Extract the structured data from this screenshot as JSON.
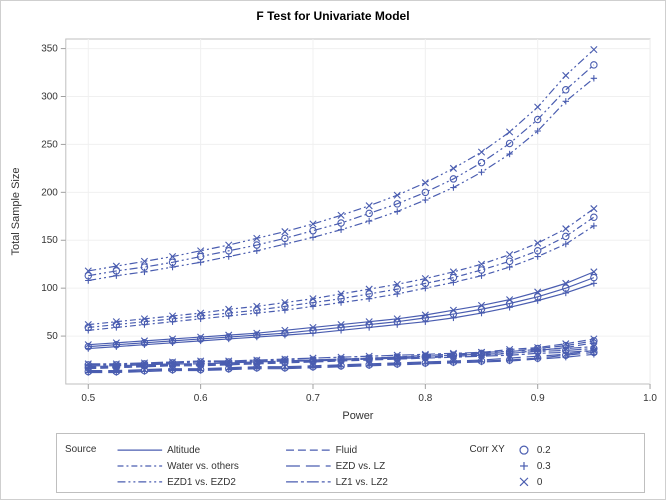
{
  "chart": {
    "title": "F Test for Univariate Model",
    "title_fontsize": 12,
    "xlabel": "Power",
    "ylabel": "Total Sample Size",
    "label_fontsize": 11,
    "tick_fontsize": 10,
    "xlim": [
      0.48,
      1.0
    ],
    "ylim": [
      0,
      360
    ],
    "xticks": [
      0.5,
      0.6,
      0.7,
      0.8,
      0.9,
      1.0
    ],
    "yticks": [
      50,
      100,
      150,
      200,
      250,
      300,
      350
    ],
    "background_color": "#ffffff",
    "grid_color": "#f0f0f0",
    "axis_color": "#a0a0a0",
    "series_color": "#4a5db0",
    "marker_size": 3.2,
    "x": [
      0.5,
      0.525,
      0.55,
      0.575,
      0.6,
      0.625,
      0.65,
      0.675,
      0.7,
      0.725,
      0.75,
      0.775,
      0.8,
      0.825,
      0.85,
      0.875,
      0.9,
      0.925,
      0.95
    ],
    "sources": [
      {
        "key": "Altitude",
        "label": "Altitude",
        "dash": []
      },
      {
        "key": "Fluid",
        "label": "Fluid",
        "dash": [
          8,
          4
        ]
      },
      {
        "key": "WaterVsOthers",
        "label": "Water vs. others",
        "dash": [
          6,
          3,
          2,
          3
        ]
      },
      {
        "key": "EZDvsLZ",
        "label": "EZD vs. LZ",
        "dash": [
          14,
          6
        ]
      },
      {
        "key": "EZD1vsEZD2",
        "label": "EZD1 vs. EZD2",
        "dash": [
          8,
          3,
          2,
          3,
          2,
          3
        ]
      },
      {
        "key": "LZ1vsLZ2",
        "label": "LZ1 vs. LZ2",
        "dash": [
          12,
          3,
          3,
          3
        ]
      }
    ],
    "corrs": [
      {
        "key": "0.2",
        "label": "0.2",
        "marker": "circle"
      },
      {
        "key": "0.3",
        "label": "0.3",
        "marker": "plus"
      },
      {
        "key": "0",
        "label": "0",
        "marker": "x"
      }
    ],
    "series": {
      "Altitude": {
        "0": [
          41,
          43,
          45,
          47,
          49,
          51,
          53,
          56,
          59,
          62,
          65,
          68,
          72,
          77,
          82,
          88,
          96,
          105,
          117
        ],
        "0.2": [
          39,
          41,
          43,
          45,
          47,
          49,
          51,
          53,
          56,
          59,
          62,
          65,
          69,
          73,
          78,
          84,
          91,
          100,
          111
        ],
        "0.3": [
          37,
          39,
          41,
          43,
          45,
          47,
          49,
          51,
          53,
          56,
          59,
          62,
          65,
          69,
          74,
          80,
          87,
          95,
          105
        ]
      },
      "Fluid": {
        "0": [
          18,
          19,
          20,
          21,
          21,
          22,
          23,
          24,
          25,
          26,
          27,
          28,
          30,
          31,
          33,
          36,
          38,
          42,
          47
        ],
        "0.2": [
          17,
          18,
          19,
          20,
          20,
          21,
          22,
          23,
          24,
          25,
          26,
          27,
          28,
          30,
          32,
          34,
          37,
          40,
          45
        ],
        "0.3": [
          16,
          17,
          18,
          19,
          19,
          20,
          21,
          22,
          23,
          24,
          25,
          26,
          27,
          29,
          30,
          32,
          35,
          38,
          43
        ]
      },
      "WaterVsOthers": {
        "0": [
          62,
          65,
          68,
          71,
          74,
          78,
          81,
          85,
          89,
          94,
          99,
          104,
          110,
          117,
          125,
          135,
          147,
          162,
          183
        ],
        "0.2": [
          59,
          62,
          65,
          68,
          71,
          74,
          77,
          81,
          85,
          89,
          94,
          99,
          105,
          111,
          119,
          128,
          139,
          154,
          174
        ],
        "0.3": [
          56,
          59,
          62,
          65,
          68,
          71,
          74,
          77,
          81,
          85,
          89,
          94,
          100,
          106,
          113,
          122,
          133,
          146,
          165
        ]
      },
      "EZDvsLZ": {
        "0": [
          14,
          14,
          15,
          16,
          16,
          17,
          18,
          18,
          19,
          20,
          21,
          22,
          23,
          24,
          25,
          27,
          29,
          31,
          35
        ],
        "0.2": [
          13,
          13,
          14,
          15,
          15,
          16,
          17,
          17,
          18,
          19,
          20,
          21,
          22,
          23,
          24,
          25,
          27,
          30,
          33
        ],
        "0.3": [
          12,
          12,
          13,
          14,
          14,
          15,
          16,
          16,
          17,
          18,
          19,
          20,
          21,
          22,
          23,
          24,
          26,
          28,
          31
        ]
      },
      "EZD1vsEZD2": {
        "0": [
          118,
          123,
          128,
          133,
          139,
          145,
          152,
          159,
          167,
          176,
          186,
          197,
          210,
          225,
          242,
          263,
          289,
          322,
          349
        ],
        "0.2": [
          113,
          118,
          122,
          127,
          133,
          139,
          145,
          152,
          160,
          168,
          178,
          188,
          200,
          214,
          231,
          251,
          276,
          307,
          333
        ],
        "0.3": [
          108,
          113,
          117,
          122,
          127,
          133,
          139,
          146,
          153,
          161,
          170,
          180,
          192,
          205,
          221,
          240,
          264,
          295,
          319
        ]
      },
      "LZ1vsLZ2": {
        "0": [
          21,
          21,
          22,
          23,
          24,
          24,
          25,
          26,
          27,
          28,
          29,
          30,
          31,
          32,
          33,
          34,
          36,
          37,
          39
        ],
        "0.2": [
          20,
          20,
          21,
          22,
          23,
          23,
          24,
          25,
          25,
          26,
          27,
          28,
          29,
          30,
          31,
          32,
          34,
          35,
          37
        ],
        "0.3": [
          19,
          19,
          20,
          21,
          21,
          22,
          23,
          24,
          24,
          25,
          26,
          27,
          27,
          28,
          29,
          30,
          32,
          33,
          35
        ]
      }
    },
    "legend": {
      "source_label": "Source",
      "corr_label": "Corr XY",
      "fontsize": 10,
      "border_color": "#bfbfbf"
    }
  }
}
